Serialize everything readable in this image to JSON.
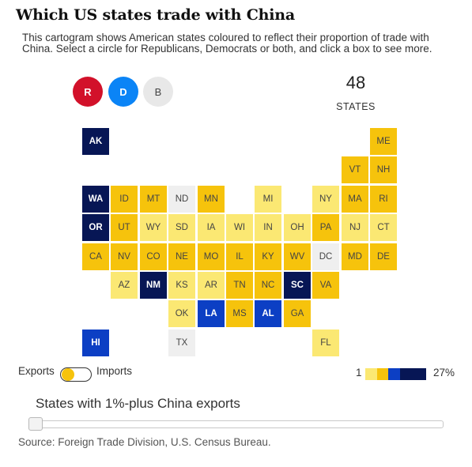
{
  "header": {
    "title": "Which US states trade with China",
    "subtitle": "This cartogram shows American states coloured to reflect their proportion of trade with China. Select a circle for Republicans, Democrats or both, and click a box to see more."
  },
  "party_buttons": {
    "r": "R",
    "d": "D",
    "b": "B"
  },
  "summary": {
    "count": "48",
    "label": "STATES"
  },
  "colors": {
    "light": "#fbe873",
    "mid": "#f6c30c",
    "blue": "#0c3fc4",
    "navy": "#071655",
    "grey": "#efefef",
    "republican": "#d2112a",
    "democrat": "#0b84f6"
  },
  "states": [
    {
      "abbr": "AK",
      "row": 0,
      "col": 0,
      "color": "navy"
    },
    {
      "abbr": "ME",
      "row": 0,
      "col": 10,
      "color": "mid"
    },
    {
      "abbr": "VT",
      "row": 1,
      "col": 9,
      "color": "mid"
    },
    {
      "abbr": "NH",
      "row": 1,
      "col": 10,
      "color": "mid"
    },
    {
      "abbr": "WA",
      "row": 2,
      "col": 0,
      "color": "navy"
    },
    {
      "abbr": "ID",
      "row": 2,
      "col": 1,
      "color": "mid"
    },
    {
      "abbr": "MT",
      "row": 2,
      "col": 2,
      "color": "mid"
    },
    {
      "abbr": "ND",
      "row": 2,
      "col": 3,
      "color": "grey"
    },
    {
      "abbr": "MN",
      "row": 2,
      "col": 4,
      "color": "mid"
    },
    {
      "abbr": "MI",
      "row": 2,
      "col": 6,
      "color": "light"
    },
    {
      "abbr": "NY",
      "row": 2,
      "col": 8,
      "color": "light"
    },
    {
      "abbr": "MA",
      "row": 2,
      "col": 9,
      "color": "mid"
    },
    {
      "abbr": "RI",
      "row": 2,
      "col": 10,
      "color": "mid"
    },
    {
      "abbr": "OR",
      "row": 3,
      "col": 0,
      "color": "navy"
    },
    {
      "abbr": "UT",
      "row": 3,
      "col": 1,
      "color": "mid"
    },
    {
      "abbr": "WY",
      "row": 3,
      "col": 2,
      "color": "light"
    },
    {
      "abbr": "SD",
      "row": 3,
      "col": 3,
      "color": "light"
    },
    {
      "abbr": "IA",
      "row": 3,
      "col": 4,
      "color": "light"
    },
    {
      "abbr": "WI",
      "row": 3,
      "col": 5,
      "color": "light"
    },
    {
      "abbr": "IN",
      "row": 3,
      "col": 6,
      "color": "light"
    },
    {
      "abbr": "OH",
      "row": 3,
      "col": 7,
      "color": "light"
    },
    {
      "abbr": "PA",
      "row": 3,
      "col": 8,
      "color": "mid"
    },
    {
      "abbr": "NJ",
      "row": 3,
      "col": 9,
      "color": "light"
    },
    {
      "abbr": "CT",
      "row": 3,
      "col": 10,
      "color": "light"
    },
    {
      "abbr": "CA",
      "row": 4,
      "col": 0,
      "color": "mid"
    },
    {
      "abbr": "NV",
      "row": 4,
      "col": 1,
      "color": "mid"
    },
    {
      "abbr": "CO",
      "row": 4,
      "col": 2,
      "color": "mid"
    },
    {
      "abbr": "NE",
      "row": 4,
      "col": 3,
      "color": "mid"
    },
    {
      "abbr": "MO",
      "row": 4,
      "col": 4,
      "color": "mid"
    },
    {
      "abbr": "IL",
      "row": 4,
      "col": 5,
      "color": "mid"
    },
    {
      "abbr": "KY",
      "row": 4,
      "col": 6,
      "color": "mid"
    },
    {
      "abbr": "WV",
      "row": 4,
      "col": 7,
      "color": "mid"
    },
    {
      "abbr": "DC",
      "row": 4,
      "col": 8,
      "color": "grey"
    },
    {
      "abbr": "MD",
      "row": 4,
      "col": 9,
      "color": "mid"
    },
    {
      "abbr": "DE",
      "row": 4,
      "col": 10,
      "color": "mid"
    },
    {
      "abbr": "AZ",
      "row": 5,
      "col": 1,
      "color": "light"
    },
    {
      "abbr": "NM",
      "row": 5,
      "col": 2,
      "color": "navy"
    },
    {
      "abbr": "KS",
      "row": 5,
      "col": 3,
      "color": "light"
    },
    {
      "abbr": "AR",
      "row": 5,
      "col": 4,
      "color": "light"
    },
    {
      "abbr": "TN",
      "row": 5,
      "col": 5,
      "color": "mid"
    },
    {
      "abbr": "NC",
      "row": 5,
      "col": 6,
      "color": "mid"
    },
    {
      "abbr": "SC",
      "row": 5,
      "col": 7,
      "color": "navy"
    },
    {
      "abbr": "VA",
      "row": 5,
      "col": 8,
      "color": "mid"
    },
    {
      "abbr": "OK",
      "row": 6,
      "col": 3,
      "color": "light"
    },
    {
      "abbr": "LA",
      "row": 6,
      "col": 4,
      "color": "blue"
    },
    {
      "abbr": "MS",
      "row": 6,
      "col": 5,
      "color": "mid"
    },
    {
      "abbr": "AL",
      "row": 6,
      "col": 6,
      "color": "blue"
    },
    {
      "abbr": "GA",
      "row": 6,
      "col": 7,
      "color": "mid"
    },
    {
      "abbr": "HI",
      "row": 7,
      "col": 0,
      "color": "blue"
    },
    {
      "abbr": "TX",
      "row": 7,
      "col": 3,
      "color": "grey"
    },
    {
      "abbr": "FL",
      "row": 7,
      "col": 8,
      "color": "light"
    }
  ],
  "toggle": {
    "left_label": "Exports",
    "right_label": "Imports",
    "selected": "Exports"
  },
  "legend": {
    "min_label": "1",
    "max_label": "27%",
    "swatches": [
      "light",
      "mid",
      "blue",
      "navy"
    ]
  },
  "slider": {
    "label": "States with 1%-plus China exports",
    "value_fraction": 0
  },
  "footer": {
    "source": "Source: Foreign Trade Division, U.S. Census Bureau."
  }
}
